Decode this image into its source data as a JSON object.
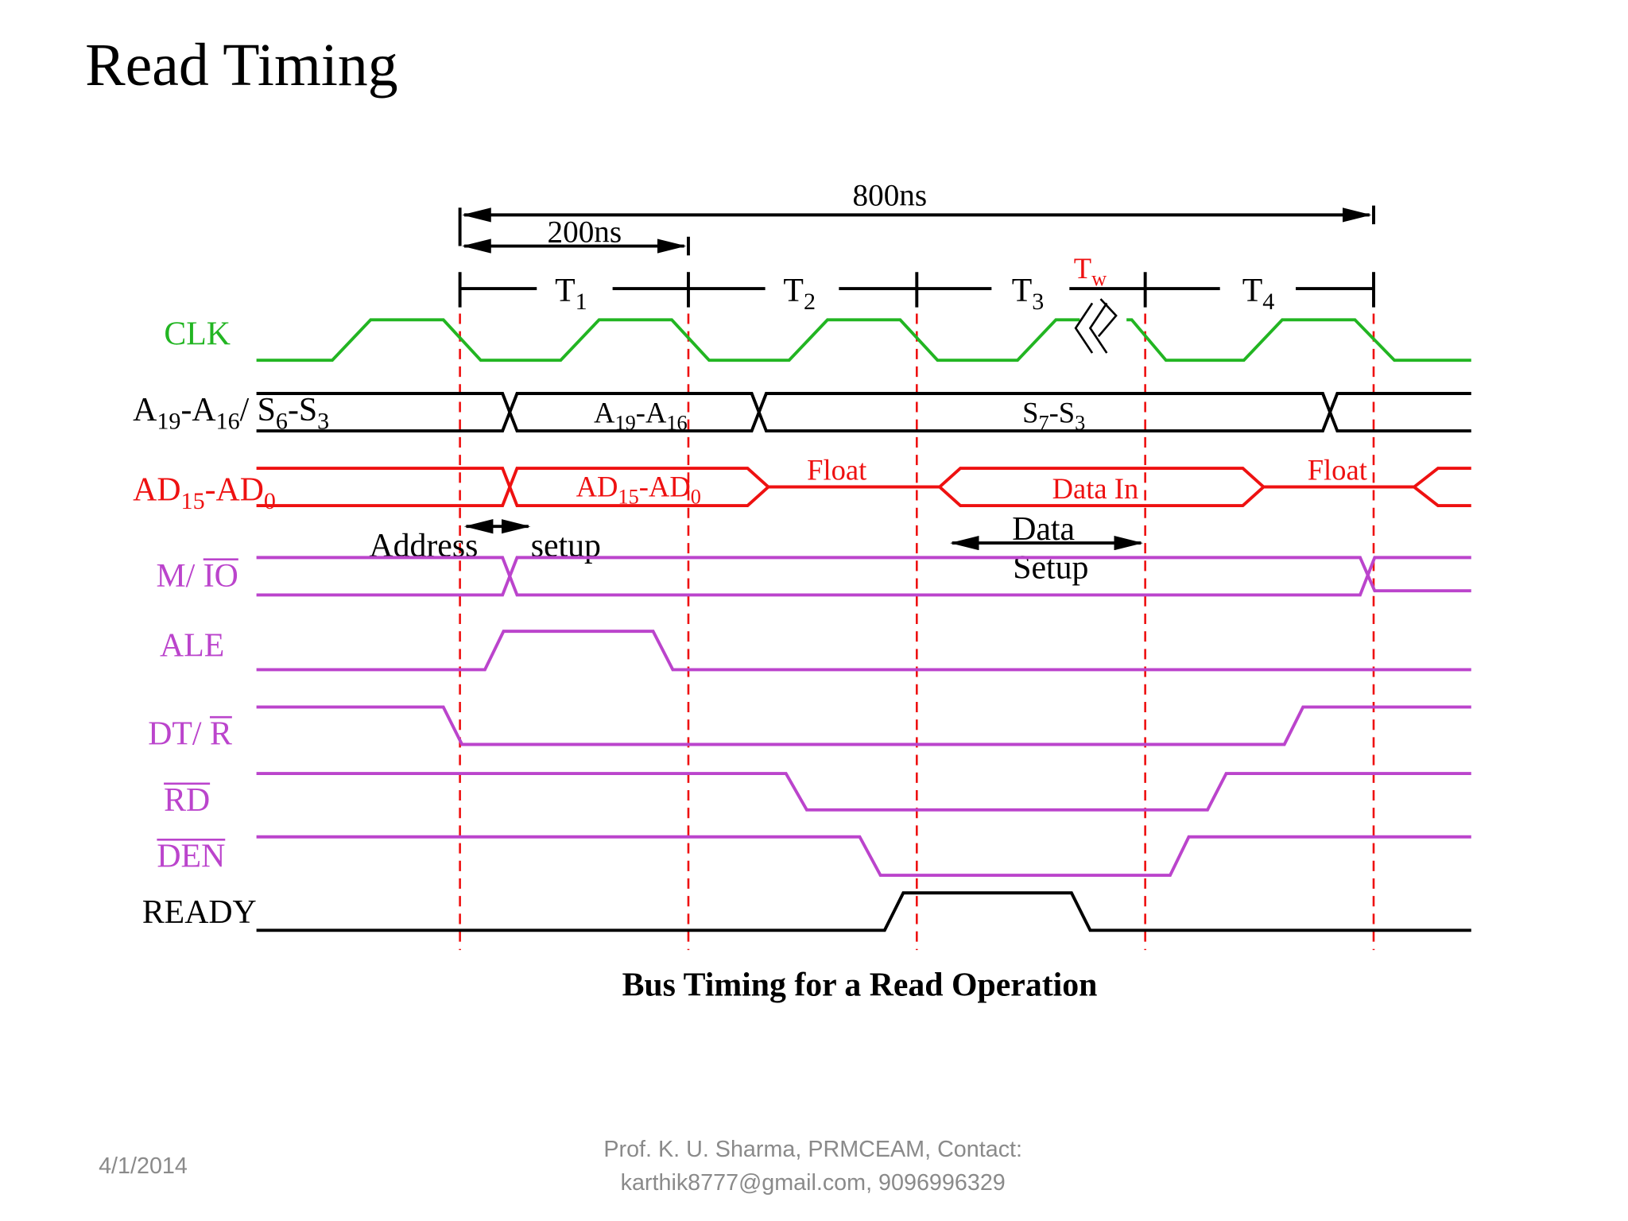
{
  "header": {
    "title": "Read Timing"
  },
  "diagram": {
    "total_time": "800ns",
    "state_time": "200ns",
    "states": [
      [
        {
          "t": "T"
        },
        {
          "sub": "1"
        }
      ],
      [
        {
          "t": "T"
        },
        {
          "sub": "2"
        }
      ],
      [
        {
          "t": "T"
        },
        {
          "sub": "3"
        }
      ],
      [
        {
          "t": "T"
        },
        {
          "sub": "4"
        }
      ]
    ],
    "wait_state": [
      {
        "t": "T"
      },
      {
        "sub": "w"
      }
    ],
    "signals": [
      {
        "label": [
          {
            "t": "CLK"
          }
        ]
      },
      {
        "label": [
          {
            "t": "A"
          },
          {
            "sub": "19"
          },
          {
            "t": "-A"
          },
          {
            "sub": "16"
          },
          {
            "t": "/ S"
          },
          {
            "sub": "6"
          },
          {
            "t": "-S"
          },
          {
            "sub": "3"
          }
        ]
      },
      {
        "label": [
          {
            "t": "AD"
          },
          {
            "sub": "15"
          },
          {
            "t": "-AD"
          },
          {
            "sub": "0"
          }
        ]
      },
      {
        "label": [
          {
            "t": "M/ "
          },
          {
            "over": "IO"
          }
        ]
      },
      {
        "label": [
          {
            "t": "ALE"
          }
        ]
      },
      {
        "label": [
          {
            "t": "DT/ "
          },
          {
            "over": "R"
          }
        ]
      },
      {
        "label": [
          {
            "over": "RD"
          }
        ]
      },
      {
        "label": [
          {
            "over": "DEN"
          }
        ]
      },
      {
        "label": [
          {
            "t": "READY"
          }
        ]
      }
    ],
    "bus_contents": {
      "address": [
        {
          "t": "A"
        },
        {
          "sub": "19"
        },
        {
          "t": "-A"
        },
        {
          "sub": "16"
        }
      ],
      "status": [
        {
          "t": "S"
        },
        {
          "sub": "7"
        },
        {
          "t": "-S"
        },
        {
          "sub": "3"
        }
      ],
      "address_data": [
        {
          "t": "AD"
        },
        {
          "sub": "15"
        },
        {
          "t": "-AD"
        },
        {
          "sub": "0"
        }
      ],
      "float_1": "Float",
      "data_in": "Data  In",
      "float_2": "Float"
    },
    "address_setup": [
      "Address",
      "setup"
    ],
    "data_setup": [
      "Data",
      "Setup"
    ],
    "caption": "Bus Timing for a Read Operation"
  },
  "footer": {
    "date": "4/1/2014",
    "credit": [
      "Prof. K. U. Sharma, PRMCEAM, Contact:",
      "karthik8777@gmail.com, 9096996329"
    ]
  }
}
